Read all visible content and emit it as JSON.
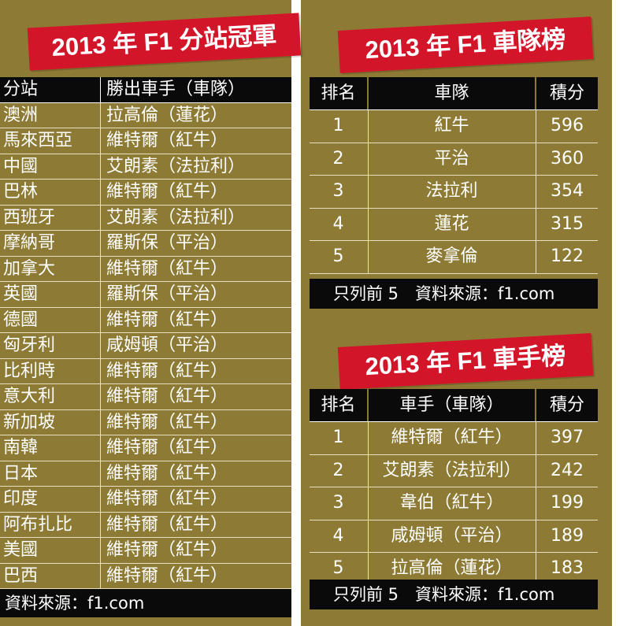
{
  "colors": {
    "background": "#8d7a34",
    "banner": "#d3152a",
    "header": "#0a0a0a",
    "text": "#ffffff"
  },
  "race_winners": {
    "title": "2013 年 F1 分站冠軍",
    "headers": [
      "分站",
      "勝出車手（車隊）"
    ],
    "rows": [
      [
        "澳洲",
        "拉高倫（蓮花）"
      ],
      [
        "馬來西亞",
        "維特爾（紅牛）"
      ],
      [
        "中國",
        "艾朗素（法拉利）"
      ],
      [
        "巴林",
        "維特爾（紅牛）"
      ],
      [
        "西班牙",
        "艾朗素（法拉利）"
      ],
      [
        "摩納哥",
        "羅斯保（平治）"
      ],
      [
        "加拿大",
        "維特爾（紅牛）"
      ],
      [
        "英國",
        "羅斯保（平治）"
      ],
      [
        "德國",
        "維特爾（紅牛）"
      ],
      [
        "匈牙利",
        "咸姆頓（平治）"
      ],
      [
        "比利時",
        "維特爾（紅牛）"
      ],
      [
        "意大利",
        "維特爾（紅牛）"
      ],
      [
        "新加坡",
        "維特爾（紅牛）"
      ],
      [
        "南韓",
        "維特爾（紅牛）"
      ],
      [
        "日本",
        "維特爾（紅牛）"
      ],
      [
        "印度",
        "維特爾（紅牛）"
      ],
      [
        "阿布扎比",
        "維特爾（紅牛）"
      ],
      [
        "美國",
        "維特爾（紅牛）"
      ],
      [
        "巴西",
        "維特爾（紅牛）"
      ]
    ],
    "source": "資料來源：f1.com"
  },
  "constructors": {
    "title": "2013 年 F1 車隊榜",
    "headers": [
      "排名",
      "車隊",
      "積分"
    ],
    "rows": [
      [
        "1",
        "紅牛",
        "596"
      ],
      [
        "2",
        "平治",
        "360"
      ],
      [
        "3",
        "法拉利",
        "354"
      ],
      [
        "4",
        "蓮花",
        "315"
      ],
      [
        "5",
        "麥拿倫",
        "122"
      ]
    ],
    "footnote": "只列前 5　資料來源：f1.com"
  },
  "drivers": {
    "title": "2013 年 F1 車手榜",
    "headers": [
      "排名",
      "車手（車隊）",
      "積分"
    ],
    "rows": [
      [
        "1",
        "維特爾（紅牛）",
        "397"
      ],
      [
        "2",
        "艾朗素（法拉利）",
        "242"
      ],
      [
        "3",
        "韋伯（紅牛）",
        "199"
      ],
      [
        "4",
        "咸姆頓（平治）",
        "189"
      ],
      [
        "5",
        "拉高倫（蓮花）",
        "183"
      ]
    ],
    "footnote": "只列前 5　資料來源：f1.com"
  }
}
